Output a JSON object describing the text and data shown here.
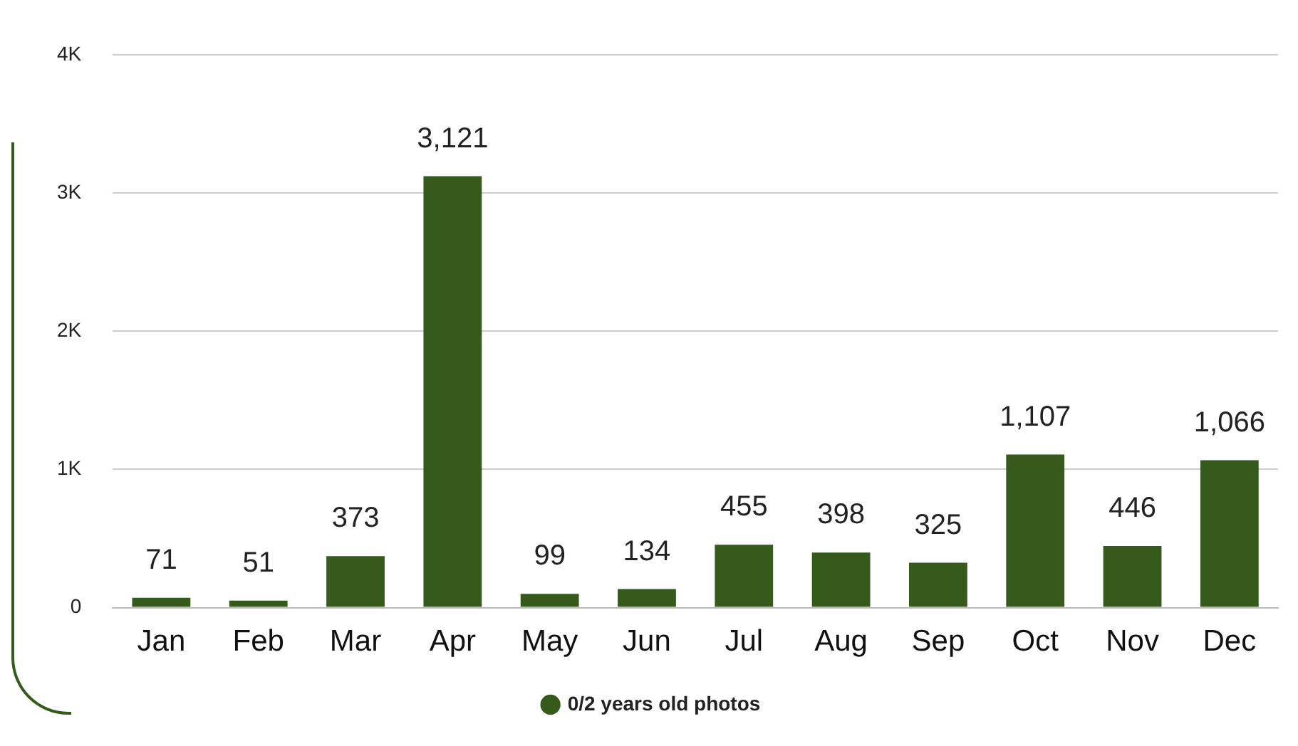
{
  "chart_data": {
    "type": "bar",
    "categories": [
      "Jan",
      "Feb",
      "Mar",
      "Apr",
      "May",
      "Jun",
      "Jul",
      "Aug",
      "Sep",
      "Oct",
      "Nov",
      "Dec"
    ],
    "series": [
      {
        "name": "0/2 years old photos",
        "color": "#365a1c",
        "values": [
          71,
          51,
          373,
          3121,
          99,
          134,
          455,
          398,
          325,
          1107,
          446,
          1066
        ],
        "value_labels": [
          "71",
          "51",
          "373",
          "3,121",
          "99",
          "134",
          "455",
          "398",
          "325",
          "1,107",
          "446",
          "1,066"
        ]
      }
    ],
    "ylim": [
      0,
      4000
    ],
    "yticks": [
      0,
      {
        "value": 1000,
        "label": "1K"
      },
      {
        "value": 2000,
        "label": "2K"
      },
      {
        "value": 3000,
        "label": "3K"
      },
      {
        "value": 4000,
        "label": "4K"
      }
    ],
    "grid": "y",
    "legend": "bottom",
    "marker": "circle"
  }
}
